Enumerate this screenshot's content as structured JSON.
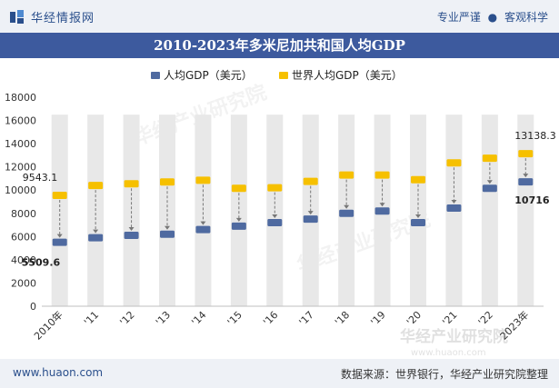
{
  "header": {
    "brand": "华经情报网",
    "slogan_left": "专业严谨",
    "slogan_sep": "●",
    "slogan_right": "客观科学"
  },
  "footer": {
    "website": "www.huaon.com",
    "source": "数据来源：世界银行，华经产业研究院整理"
  },
  "watermark": "华经产业研究院",
  "watermark_url": "www.huaon.com",
  "colors": {
    "series_gdp_pc": "#4f6aa0",
    "series_world": "#f6c000",
    "bg_bar": "#e8e8e8",
    "title_bg": "#3d5a9e"
  },
  "chart_data": {
    "type": "scatter",
    "title": "2010-2023年多米尼加共和国人均GDP",
    "categories": [
      "2010年",
      "'11",
      "'12",
      "'13",
      "'14",
      "'15",
      "'16",
      "'17",
      "'18",
      "'19",
      "'20",
      "'21",
      "'22",
      "2023年"
    ],
    "series": [
      {
        "name": "人均GDP（美元）",
        "values": [
          5509.6,
          5900,
          6100,
          6200,
          6600,
          6900,
          7200,
          7500,
          8000,
          8200,
          7200,
          8450,
          10150,
          10716
        ]
      },
      {
        "name": "世界人均GDP（美元）",
        "values": [
          9543.1,
          10400,
          10550,
          10700,
          10850,
          10150,
          10200,
          10750,
          11300,
          11300,
          10900,
          12350,
          12750,
          13138.3
        ]
      }
    ],
    "ylim": [
      0,
      18000
    ],
    "yticks": [
      0,
      2000,
      4000,
      6000,
      8000,
      10000,
      12000,
      14000,
      16000,
      18000
    ],
    "background_bar_top": 16500,
    "data_labels": [
      {
        "series": 0,
        "index": 0,
        "text": "5509.6"
      },
      {
        "series": 1,
        "index": 0,
        "text": "9543.1"
      },
      {
        "series": 0,
        "index": 13,
        "text": "10716"
      },
      {
        "series": 1,
        "index": 13,
        "text": "13138.3"
      }
    ],
    "legend_position": "top-center",
    "grid": false
  }
}
